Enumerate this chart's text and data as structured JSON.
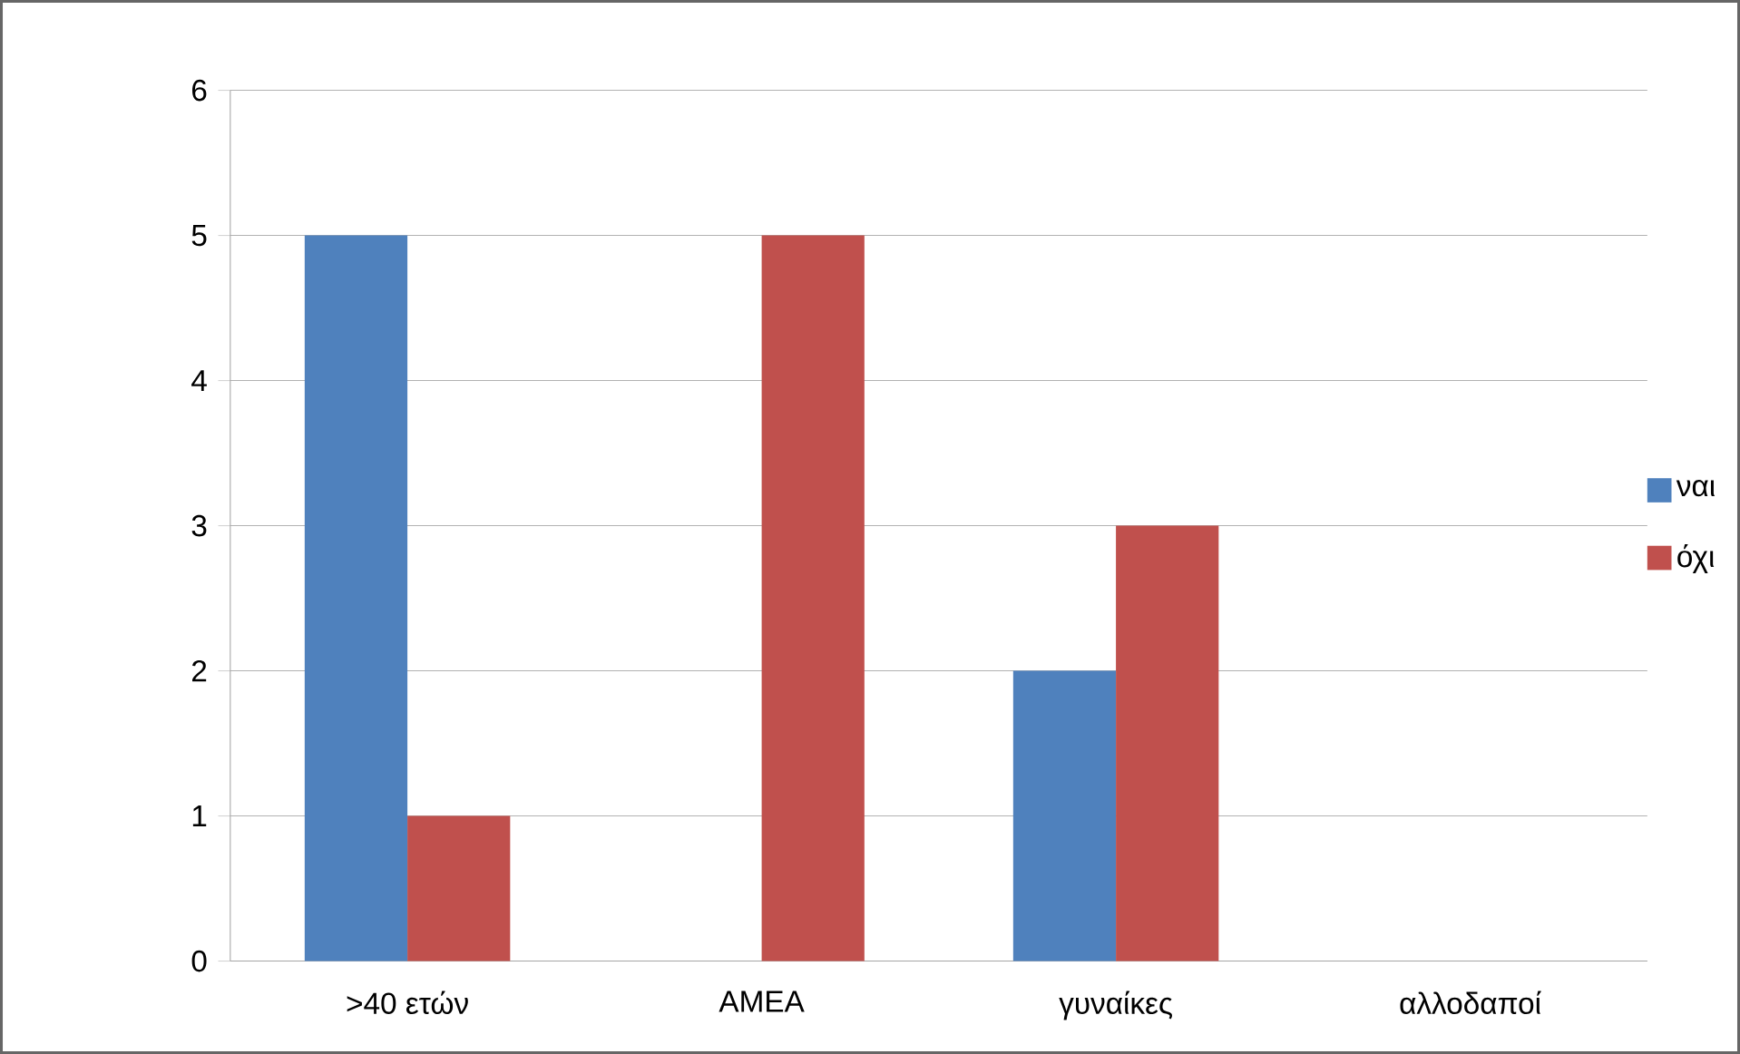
{
  "chart_data": {
    "type": "bar",
    "categories": [
      ">40 ετών",
      "ΑΜΕΑ",
      "γυναίκες",
      "αλλοδαποί"
    ],
    "series": [
      {
        "name": "ναι",
        "color": "#4f81bd",
        "values": [
          5,
          0,
          2,
          0
        ]
      },
      {
        "name": "όχι",
        "color": "#c0504d",
        "values": [
          1,
          5,
          3,
          0
        ]
      }
    ],
    "ylim": [
      0,
      6
    ],
    "yticks": [
      0,
      1,
      2,
      3,
      4,
      5,
      6
    ],
    "grid": "y",
    "legend": "right"
  }
}
